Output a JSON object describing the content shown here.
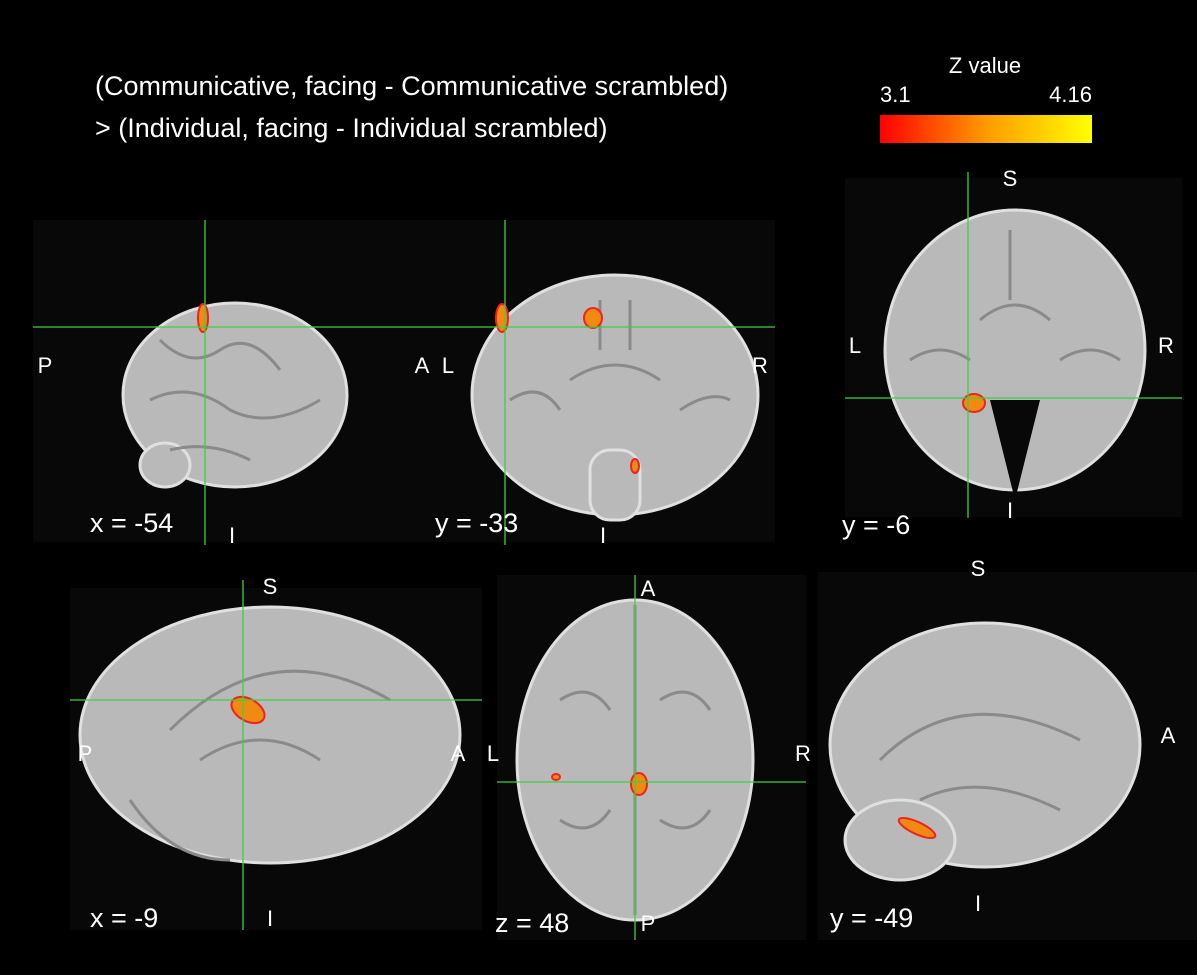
{
  "title": [
    "(Communicative, facing - Communicative scrambled)",
    "> (Individual, facing - Individual scrambled)"
  ],
  "colorbar": {
    "label": "Z value",
    "min": "3.1",
    "max": "4.16"
  },
  "panels": [
    {
      "coordinate": "x = -54",
      "orientation": [
        "P",
        "A",
        "I"
      ]
    },
    {
      "coordinate": "y = -33",
      "orientation": [
        "L",
        "R",
        "I"
      ]
    },
    {
      "coordinate": "y = -6",
      "orientation": [
        "S",
        "L",
        "R",
        "I"
      ]
    },
    {
      "coordinate": "x = -9",
      "orientation": [
        "S",
        "P",
        "A",
        "I"
      ]
    },
    {
      "coordinate": "z = 48",
      "orientation": [
        "A",
        "L",
        "R",
        "P"
      ]
    },
    {
      "coordinate": "y = -49",
      "orientation": [
        "S",
        "A",
        "I"
      ]
    }
  ]
}
